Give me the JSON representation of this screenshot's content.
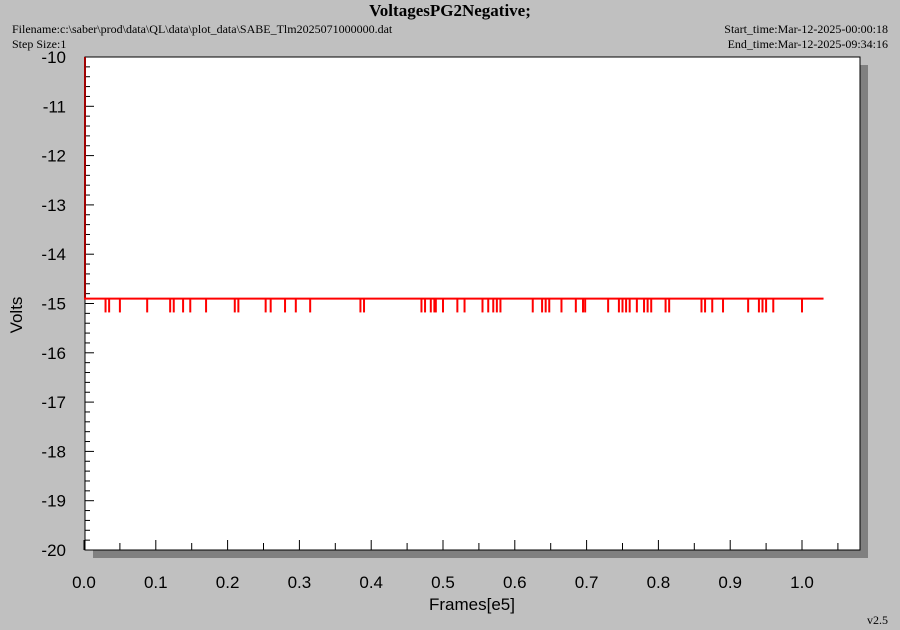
{
  "header": {
    "title": "VoltagesPG2Negative;",
    "filename": "Filename:c:\\saber\\prod\\data\\QL\\data\\plot_data\\SABE_Tlm2025071000000.dat",
    "step_size": "Step Size:1",
    "start_time": "Start_time:Mar-12-2025-00:00:18",
    "end_time": "End_time:Mar-12-2025-09:34:16"
  },
  "version": "v2.5",
  "colors": {
    "background": "#c0c0c0",
    "plot_area": "#ffffff",
    "shadow": "#808080",
    "series": "#ff0000",
    "y_axis_line": "#a00000"
  },
  "chart_data": {
    "type": "line",
    "xlabel": "Frames[e5]",
    "ylabel": "Volts",
    "xlim": [
      0.0,
      1.08
    ],
    "ylim": [
      -20,
      -10
    ],
    "x_ticks": [
      "0.0",
      "0.1",
      "0.2",
      "0.3",
      "0.4",
      "0.5",
      "0.6",
      "0.7",
      "0.8",
      "0.9",
      "1.0"
    ],
    "y_ticks": [
      "-10",
      "-11",
      "-12",
      "-13",
      "-14",
      "-15",
      "-16",
      "-17",
      "-18",
      "-19",
      "-20"
    ],
    "grid": false,
    "series": [
      {
        "baseline": -14.9,
        "x_range": [
          0.0,
          1.03
        ],
        "dip_value": -15.1,
        "dips_x": [
          0.03,
          0.035,
          0.05,
          0.088,
          0.12,
          0.125,
          0.138,
          0.148,
          0.17,
          0.21,
          0.215,
          0.253,
          0.26,
          0.28,
          0.295,
          0.315,
          0.385,
          0.39,
          0.47,
          0.475,
          0.483,
          0.488,
          0.49,
          0.5,
          0.52,
          0.53,
          0.555,
          0.563,
          0.57,
          0.575,
          0.58,
          0.625,
          0.638,
          0.643,
          0.648,
          0.665,
          0.685,
          0.695,
          0.698,
          0.73,
          0.745,
          0.75,
          0.755,
          0.76,
          0.77,
          0.78,
          0.785,
          0.79,
          0.81,
          0.815,
          0.86,
          0.865,
          0.875,
          0.89,
          0.925,
          0.94,
          0.945,
          0.95,
          0.96,
          1.0
        ],
        "initial_spike": {
          "x": 0.0,
          "from": -10,
          "to": -14.9
        }
      }
    ]
  }
}
